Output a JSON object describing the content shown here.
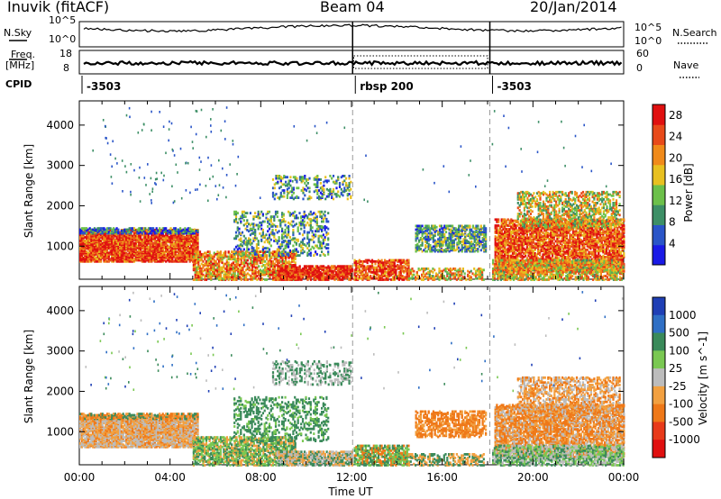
{
  "header": {
    "station": "Inuvik (fitACF)",
    "beam": "Beam 04",
    "date": "20/Jan/2014"
  },
  "top_panels": {
    "nsky_label": "N.Sky",
    "nsearch_label": "N.Search",
    "nsky_ticks": [
      "10^5",
      "10^0"
    ],
    "nsearch_ticks": [
      "10^5",
      "10^0"
    ],
    "freq_label_1": "Freq.",
    "freq_label_2": "[MHz]",
    "freq_ticks": [
      "18",
      "8"
    ],
    "nave_label": "Nave",
    "nave_ticks": [
      "60",
      "0"
    ],
    "cpid_label": "CPID",
    "cpid_segments": [
      {
        "label": "-3503",
        "start_hour": 0.0,
        "end_hour": 12.05
      },
      {
        "label": "rbsp 200",
        "start_hour": 12.05,
        "end_hour": 18.1
      },
      {
        "label": "-3503",
        "start_hour": 18.1,
        "end_hour": 24.0
      }
    ]
  },
  "chart_data": [
    {
      "type": "heatmap",
      "title": "",
      "xlabel": "",
      "ylabel": "Slant Range [km]",
      "x_ticks": [
        "00:00",
        "04:00",
        "08:00",
        "12:00",
        "16:00",
        "20:00",
        "00:00"
      ],
      "x_range_hours": [
        0,
        24
      ],
      "ylim": [
        180,
        4600
      ],
      "y_ticks": [
        1000,
        2000,
        3000,
        4000
      ],
      "colorbar": {
        "label": "Power [dB]",
        "ticks": [
          4,
          8,
          12,
          16,
          20,
          24,
          28
        ],
        "range": [
          0,
          30
        ],
        "colors": [
          "#1a1ae6",
          "#2a55c8",
          "#3d8f66",
          "#6cc04a",
          "#e8c020",
          "#f08a1a",
          "#e84a1a",
          "#e01010"
        ]
      }
    },
    {
      "type": "heatmap",
      "title": "",
      "xlabel": "Time UT",
      "ylabel": "Slant Range [km]",
      "x_ticks": [
        "00:00",
        "04:00",
        "08:00",
        "12:00",
        "16:00",
        "20:00",
        "00:00"
      ],
      "x_range_hours": [
        0,
        24
      ],
      "ylim": [
        180,
        4600
      ],
      "y_ticks": [
        1000,
        2000,
        3000,
        4000
      ],
      "colorbar": {
        "label": "Velocity [m s^-1]",
        "tick_labels": [
          "1000",
          "500",
          "100",
          "25",
          "-25",
          "-100",
          "-500",
          "-1000"
        ],
        "colors": [
          "#1f3fb5",
          "#2f6fc5",
          "#3a8a5a",
          "#7ac852",
          "#bcbcbc",
          "#f2a040",
          "#ef7818",
          "#e83a1a",
          "#e01010"
        ]
      }
    }
  ]
}
